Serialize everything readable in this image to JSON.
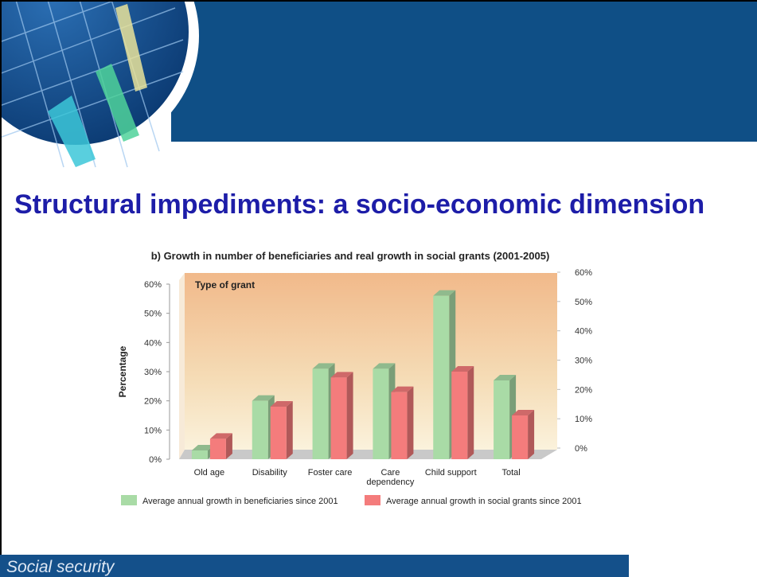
{
  "slide": {
    "title": "Structural impediments: a socio-economic dimension",
    "footer": "Social security"
  },
  "chart_data": {
    "type": "bar3d",
    "title": "b) Growth in number of beneficiaries and real growth in social grants (2001-2005)",
    "annotation": "Type of grant",
    "y_label": "Percentage",
    "categories": [
      "Old age",
      "Disability",
      "Foster care",
      "Care dependency",
      "Child support",
      "Total"
    ],
    "series": [
      {
        "name": "Average annual growth in beneficiaries since 2001",
        "color": "#a9dba6",
        "values": [
          3,
          20,
          31,
          31,
          56,
          27
        ]
      },
      {
        "name": "Average annual growth in social grants since 2001",
        "color": "#f47c7c",
        "values": [
          7,
          18,
          28,
          23,
          30,
          15
        ]
      }
    ],
    "ylim": [
      0,
      60
    ],
    "yticks": [
      {
        "value": 0,
        "label": "0%"
      },
      {
        "value": 10,
        "label": "10%"
      },
      {
        "value": 20,
        "label": "20%"
      },
      {
        "value": 30,
        "label": "30%"
      },
      {
        "value": 40,
        "label": "40%"
      },
      {
        "value": 50,
        "label": "50%"
      },
      {
        "value": 60,
        "label": "60%"
      }
    ],
    "y2lim": [
      0,
      60
    ],
    "y2ticks": [
      {
        "value": 0,
        "label": "0%"
      },
      {
        "value": 10,
        "label": "10%"
      },
      {
        "value": 20,
        "label": "20%"
      },
      {
        "value": 30,
        "label": "30%"
      },
      {
        "value": 40,
        "label": "40%"
      },
      {
        "value": 50,
        "label": "50%"
      },
      {
        "value": 60,
        "label": "60%"
      }
    ],
    "grid": false,
    "legend": "bottom"
  }
}
